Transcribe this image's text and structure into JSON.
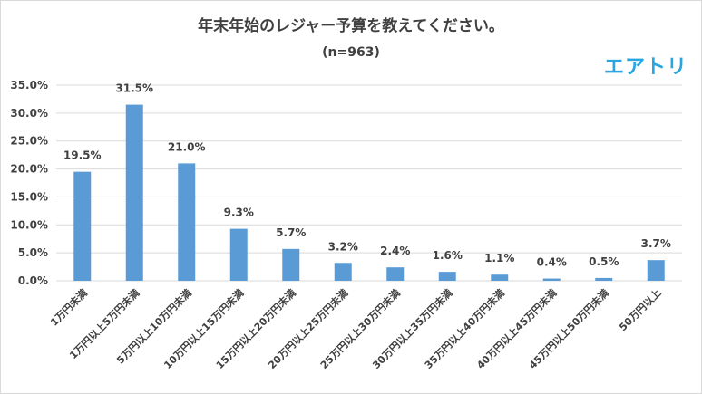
{
  "chart_data": {
    "type": "bar",
    "title": "年末年始のレジャー予算を教えてください。",
    "subtitle": "(n=963)",
    "brand": "エアトリ",
    "categories": [
      "1万円未満",
      "1万円以上5万円未満",
      "5万円以上10万円未満",
      "10万円以上15万円未満",
      "15万円以上20万円未満",
      "20万円以上25万円未満",
      "25万円以上30万円未満",
      "30万円以上35万円未満",
      "35万円以上40万円未満",
      "40万円以上45万円未満",
      "45万円以上50万円未満",
      "50万円以上"
    ],
    "values": [
      19.5,
      31.5,
      21.0,
      9.3,
      5.7,
      3.2,
      2.4,
      1.6,
      1.1,
      0.4,
      0.5,
      3.7
    ],
    "data_labels": [
      "19.5%",
      "31.5%",
      "21.0%",
      "9.3%",
      "5.7%",
      "3.2%",
      "2.4%",
      "1.6%",
      "1.1%",
      "0.4%",
      "0.5%",
      "3.7%"
    ],
    "y_ticks": [
      "0.0%",
      "5.0%",
      "10.0%",
      "15.0%",
      "20.0%",
      "25.0%",
      "30.0%",
      "35.0%"
    ],
    "ylim": [
      0,
      35
    ],
    "xlabel": "",
    "ylabel": "",
    "grid": true,
    "bar_color": "#5b9bd5",
    "grid_color": "#d9d9d9",
    "brand_color": "#29a6e0"
  }
}
